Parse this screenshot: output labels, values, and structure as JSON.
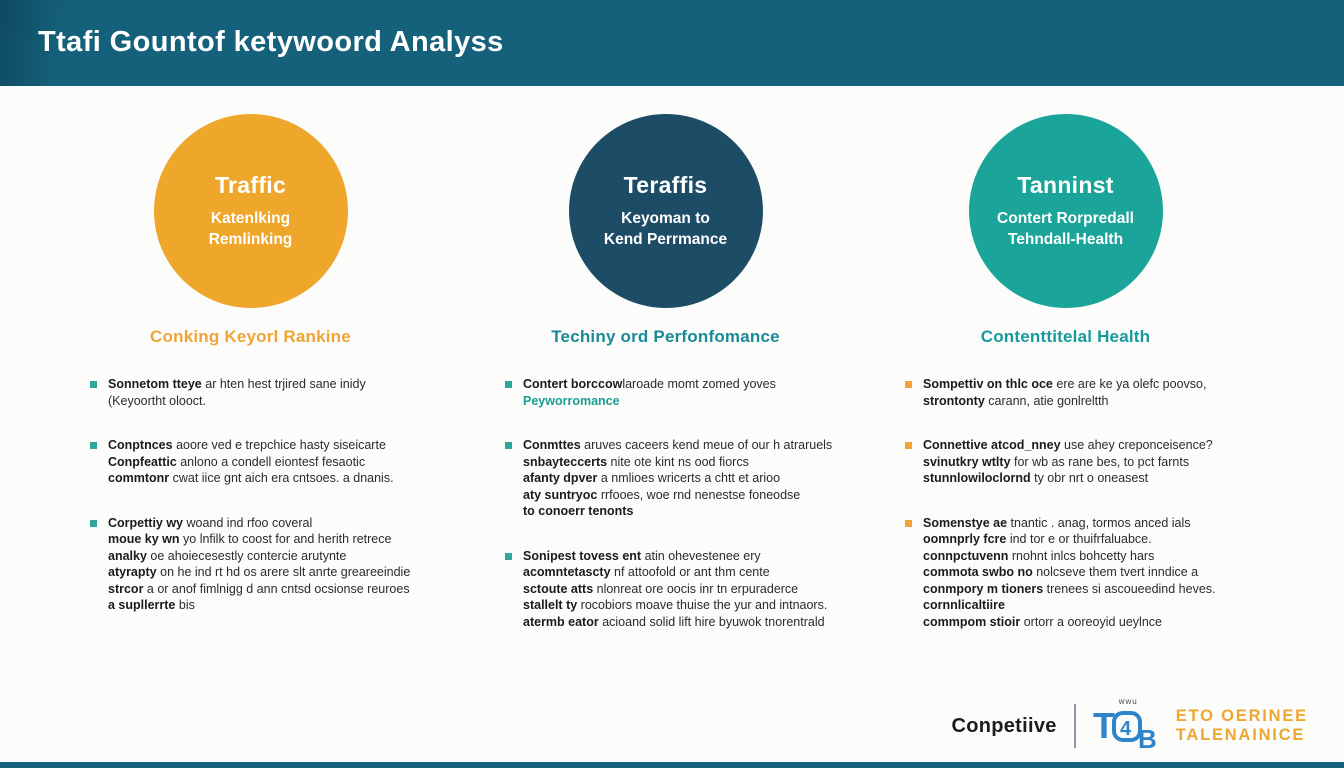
{
  "header": {
    "title": "Ttafi Gountof ketywoord Analyss",
    "bg_color": "#15607a"
  },
  "columns": [
    {
      "id": "keyword-ranking",
      "circle": {
        "title": "Traffic",
        "subtitle_lines": [
          "Katenlking",
          "Remlinking"
        ],
        "color": "#eea62b"
      },
      "heading": {
        "text": "Conking Keyorl Rankine",
        "color": "#f0a437"
      },
      "bullet_color": "#2fa69a",
      "bullets": [
        {
          "lines": [
            {
              "b": "Sonnetom tteye",
              "r": " ar hten hest trjired sane inidy"
            },
            {
              "b": "",
              "r": "(Keyoortht olooct."
            }
          ]
        },
        {
          "lines": [
            {
              "b": "Conptnces",
              "r": " aoore ved e trepchice hasty siseicarte"
            },
            {
              "b": "Conpfeattic",
              "r": " anlono a condell eiontesf fesaotic"
            },
            {
              "b": "commtonr",
              "r": " cwat iice gnt aich era cntsoes. a dnanis."
            }
          ]
        },
        {
          "lines": [
            {
              "b": "Corpettiy wy",
              "r": " woand ind rfoo coveral"
            },
            {
              "b": "moue ky wn",
              "r": " yo lnfilk to coost for and herith retrece"
            },
            {
              "b": "analky",
              "r": " oe ahoiecesestly contercie arutynte"
            },
            {
              "b": "atyrapty",
              "r": " on he ind rt hd os arere slt anrte greareeindie"
            },
            {
              "b": "strcor",
              "r": " a or anof fimlnigg d ann cntsd ocsionse reuroes"
            },
            {
              "b": "a supllerrte",
              "r": " bis"
            }
          ]
        }
      ]
    },
    {
      "id": "technical-performance",
      "circle": {
        "title": "Teraffis",
        "subtitle_lines": [
          "Keyoman to",
          "Kend Perrmance"
        ],
        "color": "#1d4c66"
      },
      "heading": {
        "text": "Techiny ord Perfonfomance",
        "color": "#1a8a99"
      },
      "bullet_color": "#2fa69a",
      "bullets": [
        {
          "lines": [
            {
              "b": "Contert borccow",
              "r": "laroade momt zomed yoves"
            },
            {
              "b": "Peyworromance",
              "r": "",
              "bc": "#1a9d92"
            }
          ]
        },
        {
          "lines": [
            {
              "b": "Conmttes",
              "r": " aruves caceers kend meue of our h atraruels"
            },
            {
              "b": "snbayteccerts",
              "r": " nite ote kint ns ood fiorcs"
            },
            {
              "b": "afanty dpver",
              "r": " a nmlioes wricerts a chtt et arioo"
            },
            {
              "b": "aty suntryoc",
              "r": " rrfooes, woe rnd nenestse foneodse"
            },
            {
              "b": "to conoerr tenonts",
              "r": ""
            }
          ]
        },
        {
          "lines": [
            {
              "b": "Sonipest tovess ent",
              "r": " atin ohevestenee ery"
            },
            {
              "b": "acomntetascty",
              "r": " nf attoofold or ant thm cente"
            },
            {
              "b": "sctoute atts",
              "r": " nlonreat ore oocis inr tn erpuraderce"
            },
            {
              "b": "stallelt ty",
              "r": " rocobiors moave thuise the yur and intnaors."
            },
            {
              "b": "atermb eator",
              "r": " acioand solid lift hire byuwok tnorentrald"
            }
          ]
        }
      ]
    },
    {
      "id": "content-health",
      "circle": {
        "title": "Tanninst",
        "subtitle_lines": [
          "Contert Rorpredall",
          "Tehndall-Health"
        ],
        "color": "#1ba59a"
      },
      "heading": {
        "text": "Contenttitelal Health",
        "color": "#169a9d"
      },
      "bullet_color": "#f0a437",
      "bullets": [
        {
          "lines": [
            {
              "b": "Sompettiv on thlc oce",
              "r": " ere are ke ya olefc poovso,"
            },
            {
              "b": "strontonty",
              "r": " carann, atie gonlreltth"
            }
          ]
        },
        {
          "lines": [
            {
              "b": "Connettive atcod_nney",
              "r": " use ahey creponceisence?"
            },
            {
              "b": "svinutkry wtlty",
              "r": " for wb as rane bes, to pct farnts"
            },
            {
              "b": "stunnlowiloclornd",
              "r": " ty obr nrt o oneasest"
            }
          ]
        },
        {
          "lines": [
            {
              "b": "Somenstye ae",
              "r": " tnantic . anag, tormos anced ials"
            },
            {
              "b": "oomnprly fcre",
              "r": " ind tor e or thuifrfaluabce."
            },
            {
              "b": "connpctuvenn",
              "r": " rnohnt inlcs bohcetty hars"
            },
            {
              "b": "commota swbo no",
              "r": " nolcseve them tvert inndice a"
            },
            {
              "b": "conmpory m tioners",
              "r": " trenees si ascoueedind heves."
            },
            {
              "b": "cornnlicaltiire",
              "r": ""
            },
            {
              "b": "commpom stioir",
              "r": " ortorr a ooreoyid ueylnce"
            }
          ]
        }
      ]
    }
  ],
  "footer": {
    "brand": "Conpetiive",
    "logo_small_text": "wwu",
    "logo_letters": {
      "t": "T",
      "four": "4",
      "b": "B"
    },
    "logo_lines": [
      "ETO OERINEE",
      "TALENAINICE"
    ],
    "logo_blue": "#2d84c8",
    "logo_orange": "#eda72e"
  }
}
